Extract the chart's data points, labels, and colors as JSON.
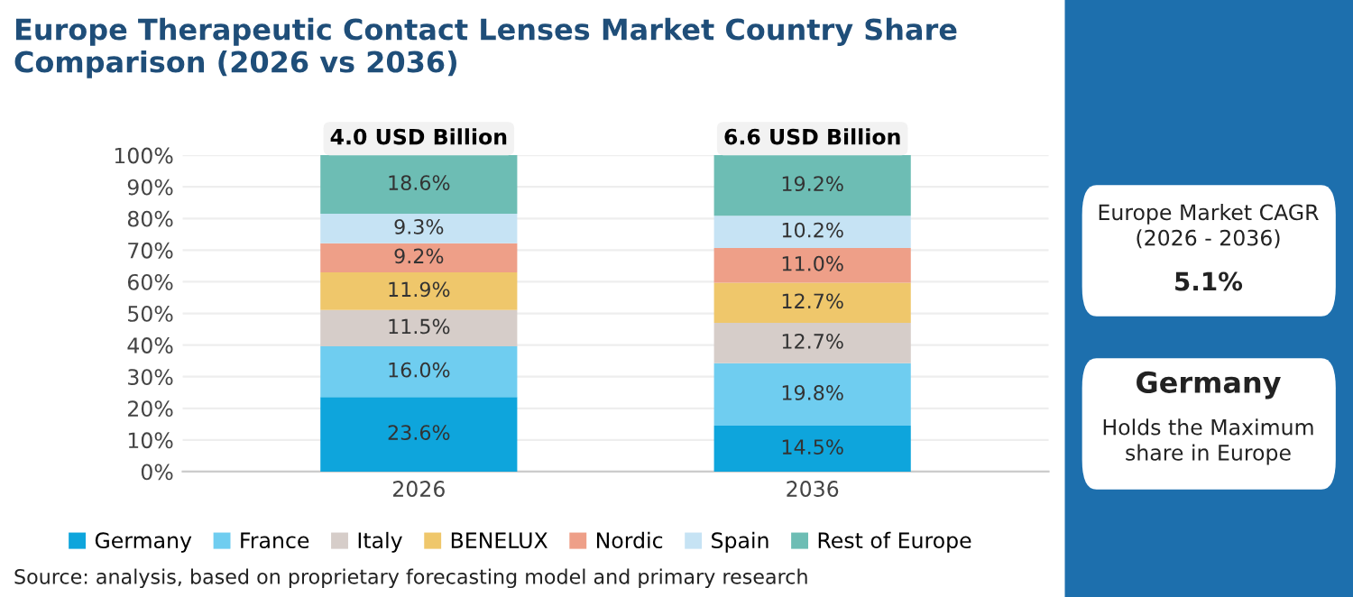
{
  "chart_data": {
    "type": "bar",
    "stacked": true,
    "title": "Europe Therapeutic Contact Lenses Market Country Share Comparison (2026 vs 2036)",
    "categories": [
      "2026",
      "2036"
    ],
    "series": [
      {
        "name": "Germany",
        "color": "#0ea5dc",
        "values": [
          23.6,
          14.5
        ],
        "value_labels": [
          "23.6%",
          "14.5%"
        ]
      },
      {
        "name": "France",
        "color": "#6fcdf0",
        "values": [
          16.0,
          19.8
        ],
        "value_labels": [
          "16.0%",
          "19.8%"
        ]
      },
      {
        "name": "Italy",
        "color": "#d6cdc9",
        "values": [
          11.5,
          12.7
        ],
        "value_labels": [
          "11.5%",
          "12.7%"
        ]
      },
      {
        "name": "BENELUX",
        "color": "#efc76b",
        "values": [
          11.9,
          12.7
        ],
        "value_labels": [
          "11.9%",
          "12.7%"
        ]
      },
      {
        "name": "Nordic",
        "color": "#ee9f88",
        "values": [
          9.2,
          11.0
        ],
        "value_labels": [
          "9.2%",
          "11.0%"
        ]
      },
      {
        "name": "Spain",
        "color": "#c6e3f4",
        "values": [
          9.3,
          10.2
        ],
        "value_labels": [
          "9.3%",
          "10.2%"
        ]
      },
      {
        "name": "Rest of Europe",
        "color": "#6dbdb4",
        "values": [
          18.6,
          19.2
        ],
        "value_labels": [
          "18.6%",
          "19.2%"
        ]
      }
    ],
    "ylim": [
      0,
      100
    ],
    "yticks": [
      {
        "value": 0,
        "label": "0%"
      },
      {
        "value": 10,
        "label": "10%"
      },
      {
        "value": 20,
        "label": "20%"
      },
      {
        "value": 30,
        "label": "30%"
      },
      {
        "value": 40,
        "label": "40%"
      },
      {
        "value": 50,
        "label": "50%"
      },
      {
        "value": 60,
        "label": "60%"
      },
      {
        "value": 70,
        "label": "70%"
      },
      {
        "value": 80,
        "label": "80%"
      },
      {
        "value": 90,
        "label": "90%"
      },
      {
        "value": 100,
        "label": "100%"
      }
    ],
    "grid": "y",
    "legend": "bottom",
    "annotations": [
      {
        "text": "4.0 USD Billion",
        "x": "2026",
        "y": 100
      },
      {
        "text": "6.6 USD Billion",
        "x": "2036",
        "y": 100
      },
      "Europe Market CAGR\n(2026 - 2036)",
      "5.1%",
      "Germany",
      "Holds the Maximum\nshare in Europe",
      "Source: analysis, based on proprietary forecasting model and primary research"
    ]
  }
}
